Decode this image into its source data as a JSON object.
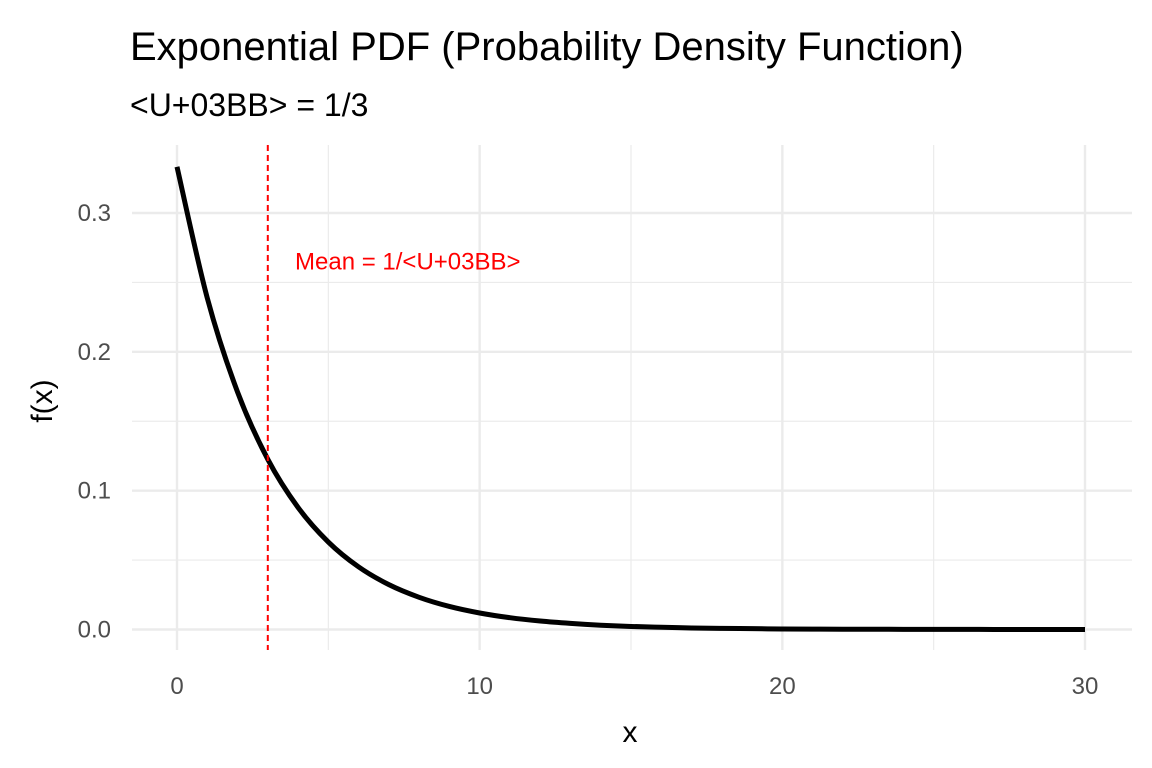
{
  "chart_data": {
    "type": "line",
    "title": "Exponential PDF (Probability Density Function)",
    "subtitle": "<U+03BB> = 1/3",
    "xlabel": "x",
    "ylabel": "f(x)",
    "xlim": [
      0,
      30
    ],
    "ylim": [
      0,
      0.3333
    ],
    "x_ticks": [
      0,
      10,
      20,
      30
    ],
    "x_tick_labels": [
      "0",
      "10",
      "20",
      "30"
    ],
    "y_ticks": [
      0.0,
      0.1,
      0.2,
      0.3
    ],
    "y_tick_labels": [
      "0.0",
      "0.1",
      "0.2",
      "0.3"
    ],
    "grid": true,
    "legend": "none",
    "series": [
      {
        "color": "#000000",
        "x": [
          0,
          1,
          2,
          3,
          4,
          5,
          6,
          7,
          8,
          9,
          10,
          11,
          12,
          13,
          14,
          15,
          16,
          17,
          18,
          19,
          20,
          21,
          22,
          23,
          24,
          25,
          26,
          27,
          28,
          29,
          30
        ],
        "y": [
          0.3333,
          0.2388,
          0.1711,
          0.1226,
          0.0879,
          0.063,
          0.0451,
          0.0323,
          0.0232,
          0.0166,
          0.0119,
          0.0085,
          0.0061,
          0.0044,
          0.0031,
          0.0022,
          0.0016,
          0.0011,
          0.0008,
          0.0006,
          0.0004,
          0.0003,
          0.0002,
          0.0002,
          0.0001,
          0.0001,
          0.0001,
          0.0,
          0.0,
          0.0,
          0.0
        ]
      }
    ],
    "annotations": [
      {
        "type": "vline",
        "x": 3,
        "color": "#ff0000",
        "style": "dashed",
        "label": "Mean = 1/<U+03BB>",
        "label_x": 3.9,
        "label_y": 0.265
      }
    ]
  }
}
